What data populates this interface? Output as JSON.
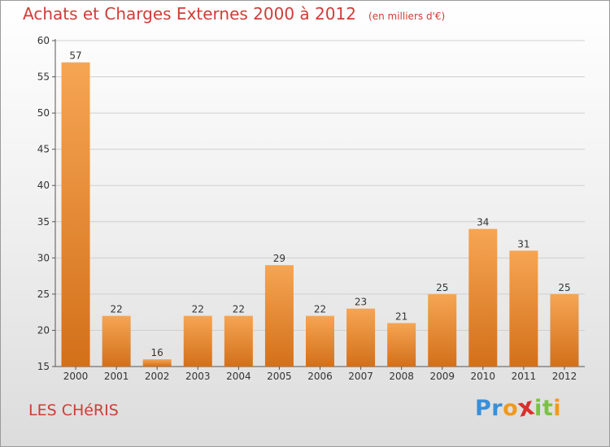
{
  "chart_data": {
    "type": "bar",
    "title": "Achats et Charges Externes 2000 à 2012",
    "subtitle": "(en milliers d'€)",
    "categories": [
      "2000",
      "2001",
      "2002",
      "2003",
      "2004",
      "2005",
      "2006",
      "2007",
      "2008",
      "2009",
      "2010",
      "2011",
      "2012"
    ],
    "values": [
      57,
      22,
      16,
      22,
      22,
      29,
      22,
      23,
      21,
      25,
      34,
      31,
      25
    ],
    "ylim": [
      15,
      60
    ],
    "yticks": [
      15,
      20,
      25,
      30,
      35,
      40,
      45,
      50,
      55,
      60
    ],
    "grid": true,
    "xlabel": "",
    "ylabel": "",
    "bar_color_top": "#f6a553",
    "bar_color_bottom": "#d3701a"
  },
  "commune": "LES CHéRIS",
  "brand": {
    "letters": [
      "P",
      "r",
      "o",
      "x",
      "i",
      "t",
      "i"
    ],
    "colors": [
      "#3a8fd6",
      "#3a8fd6",
      "#f09a1c",
      "#d9302c",
      "#7cc242",
      "#7cc242",
      "#f09a1c"
    ]
  }
}
